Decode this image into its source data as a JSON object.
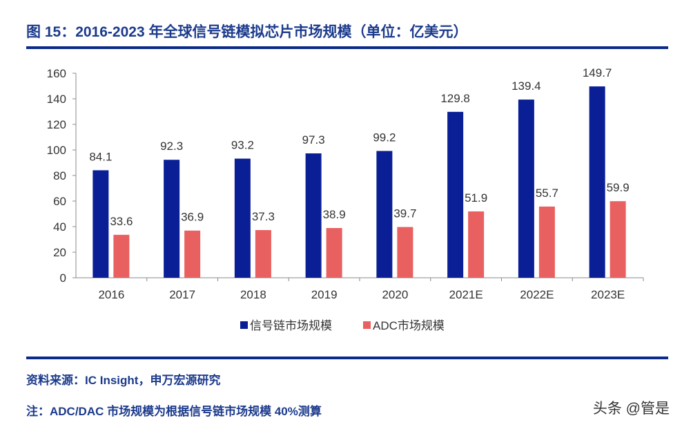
{
  "header": {
    "title": "图 15：2016-2023 年全球信号链模拟芯片市场规模（单位：亿美元）"
  },
  "footer": {
    "source": "资料来源：IC Insight，申万宏源研究",
    "note": "注：ADC/DAC 市场规模为根据信号链市场规模 40%测算",
    "watermark": "头条 @管是"
  },
  "chart_data": {
    "type": "bar",
    "categories": [
      "2016",
      "2017",
      "2018",
      "2019",
      "2020",
      "2021E",
      "2022E",
      "2023E"
    ],
    "series": [
      {
        "name": "信号链市场规模",
        "color": "#0a1f96",
        "values": [
          84.1,
          92.3,
          93.2,
          97.3,
          99.2,
          129.8,
          139.4,
          149.7
        ]
      },
      {
        "name": "ADC市场规模",
        "color": "#e8605f",
        "values": [
          33.6,
          36.9,
          37.3,
          38.9,
          39.7,
          51.9,
          55.7,
          59.9
        ]
      }
    ],
    "ylim": [
      0,
      160
    ],
    "yticks": [
      0,
      20,
      40,
      60,
      80,
      100,
      120,
      140,
      160
    ],
    "grid": false,
    "legend": "bottom",
    "data_labels": true
  }
}
